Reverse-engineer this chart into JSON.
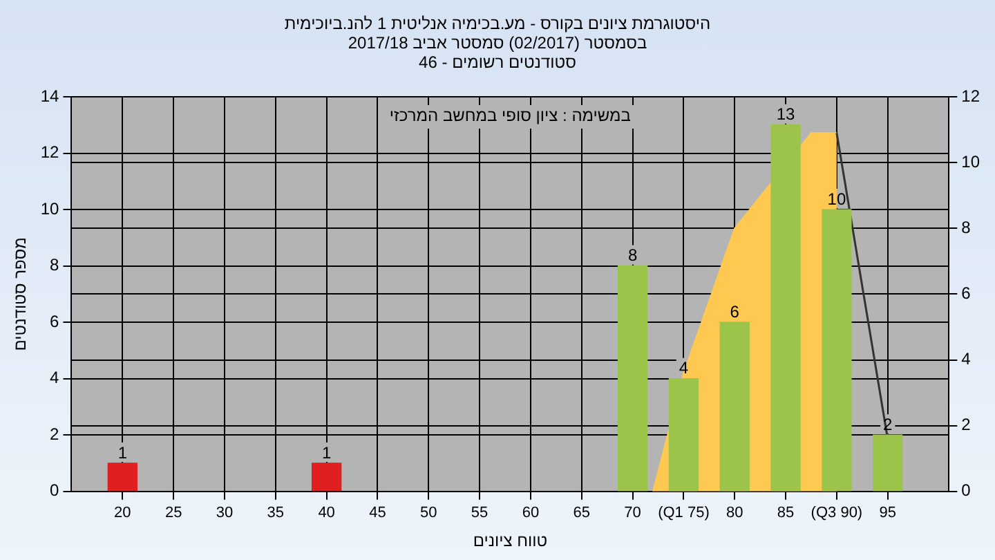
{
  "chart_data": {
    "type": "bar",
    "title": "היסטוגרמת ציונים בקורס - מע.בכימיה אנליטית 1 להנ.ביוכימית",
    "subtitle": "בסמסטר (02/2017) סמסטר אביב 2017/18\nסטודנטים רשומים - 46",
    "xlabel": "טווח ציונים",
    "ylabel": "מספר סטודנטים",
    "annotations": [
      "במשימה : ציון סופי במחשב המרכזי"
    ],
    "series": [
      {
        "x": [
          20,
          40,
          70,
          75,
          80,
          85,
          90,
          95
        ],
        "values": [
          1,
          1,
          8,
          4,
          6,
          13,
          10,
          2
        ],
        "value_labels": [
          "1",
          "1",
          "8",
          "4",
          "6",
          "13",
          "10",
          "2"
        ],
        "colors": [
          "#e02020",
          "#e02020",
          "#9cc44a",
          "#9cc44a",
          "#9cc44a",
          "#9cc44a",
          "#9cc44a",
          "#9cc44a"
        ]
      },
      {
        "type": "area",
        "axis": "y2",
        "color": "#ffc850",
        "x": [
          72,
          75,
          80,
          87.5,
          90
        ],
        "values": [
          0,
          3.6,
          8,
          10.9,
          10.9
        ]
      },
      {
        "type": "line",
        "axis": "y2",
        "color": "#333333",
        "x": [
          90,
          95
        ],
        "values": [
          10.9,
          1.6
        ]
      }
    ],
    "xlim": [
      15,
      101
    ],
    "xticks": [
      20,
      25,
      30,
      35,
      40,
      45,
      50,
      55,
      60,
      65,
      70,
      {
        "value": 75,
        "label": "(Q1 75)"
      },
      80,
      85,
      {
        "value": 90,
        "label": "(Q3 90)"
      },
      95
    ],
    "ylim": [
      0,
      14
    ],
    "yticks": [
      0,
      2,
      4,
      6,
      8,
      10,
      12,
      14
    ],
    "y2lim": [
      0,
      12
    ],
    "y2ticks": [
      0,
      2,
      4,
      6,
      8,
      10,
      12
    ],
    "grid": true,
    "legend": false,
    "marker": "none"
  }
}
